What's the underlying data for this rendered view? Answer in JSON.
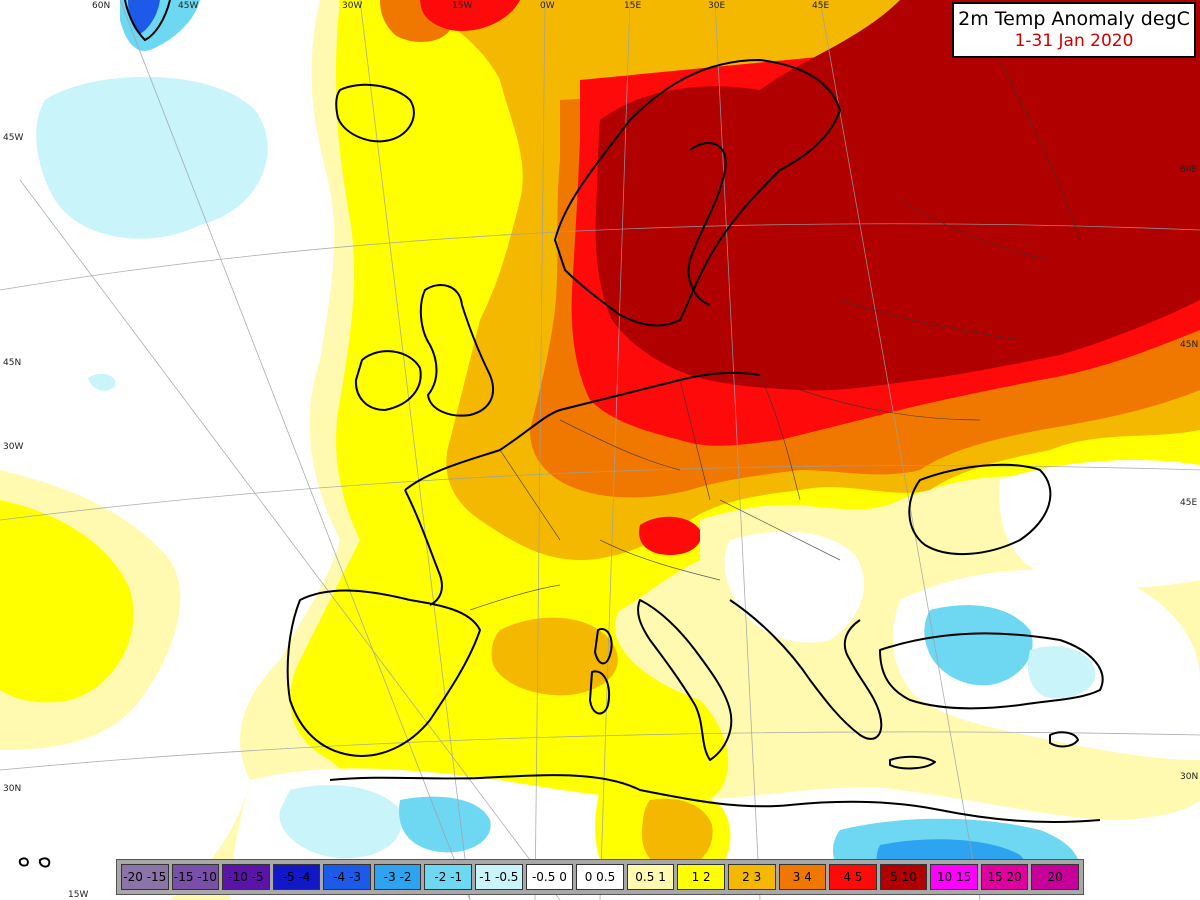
{
  "title": {
    "line1": "2m Temp Anomaly degC",
    "line2": "1-31 Jan 2020"
  },
  "top_ticks": [
    "60N",
    "45W",
    "30W",
    "15W",
    "0W",
    "15E",
    "30E",
    "45E"
  ],
  "left_ticks": [
    "45W",
    "45N",
    "30W",
    "30N",
    "15W"
  ],
  "right_ticks": [
    "60E",
    "45N",
    "45E",
    "30N"
  ],
  "legend": [
    {
      "label": "-20 -15",
      "color": "#8b74a8",
      "text_color": "#000000"
    },
    {
      "label": "-15 -10",
      "color": "#7a4fa8",
      "text_color": "#000000"
    },
    {
      "label": "-10 -5",
      "color": "#5a14a8",
      "text_color": "#000000"
    },
    {
      "label": "-5 -4",
      "color": "#1018c8",
      "text_color": "#000000"
    },
    {
      "label": "-4 -3",
      "color": "#1d5ae8",
      "text_color": "#000000"
    },
    {
      "label": "-3 -2",
      "color": "#2ea4f0",
      "text_color": "#000000"
    },
    {
      "label": "-2 -1",
      "color": "#6ed8f2",
      "text_color": "#000000"
    },
    {
      "label": "-1 -0.5",
      "color": "#c8f4fa",
      "text_color": "#000000"
    },
    {
      "label": "-0.5 0",
      "color": "#ffffff",
      "text_color": "#000000"
    },
    {
      "label": "0 0.5",
      "color": "#ffffff",
      "text_color": "#000000"
    },
    {
      "label": "0.5 1",
      "color": "#fffab0",
      "text_color": "#000000"
    },
    {
      "label": "1 2",
      "color": "#ffff00",
      "text_color": "#000000"
    },
    {
      "label": "2 3",
      "color": "#f5b800",
      "text_color": "#000000"
    },
    {
      "label": "3 4",
      "color": "#f07800",
      "text_color": "#000000"
    },
    {
      "label": "4 5",
      "color": "#ff0a0a",
      "text_color": "#000000"
    },
    {
      "label": "5 10",
      "color": "#b00000",
      "text_color": "#000000"
    },
    {
      "label": "10 15",
      "color": "#ff00ff",
      "text_color": "#000000"
    },
    {
      "label": "15 20",
      "color": "#e000a0",
      "text_color": "#000000"
    },
    {
      "label": "20",
      "color": "#c8009a",
      "text_color": "#000000"
    }
  ]
}
